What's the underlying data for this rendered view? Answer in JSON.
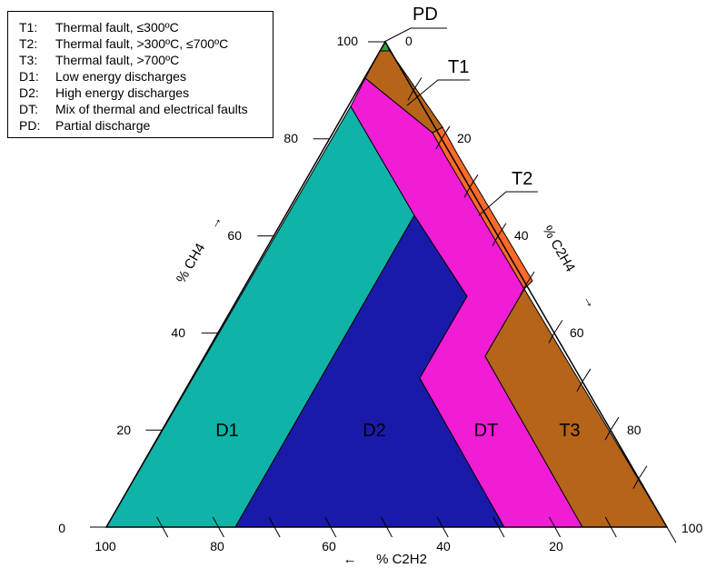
{
  "legend": {
    "entries": [
      {
        "code": "T1:",
        "desc": "Thermal fault, ≤300ºC"
      },
      {
        "code": "T2:",
        "desc": "Thermal fault, >300ºC, ≤700ºC"
      },
      {
        "code": "T3:",
        "desc": "Thermal fault, >700ºC"
      },
      {
        "code": "D1:",
        "desc": "Low energy discharges"
      },
      {
        "code": "D2:",
        "desc": "High energy discharges"
      },
      {
        "code": "DT:",
        "desc": "Mix of thermal and electrical faults"
      },
      {
        "code": "PD:",
        "desc": "Partial discharge"
      }
    ]
  },
  "zones": {
    "D1": {
      "label": "D1",
      "color": "#10b3a8"
    },
    "D2": {
      "label": "D2",
      "color": "#1a1aaa"
    },
    "DT": {
      "label": "DT",
      "color": "#f01cd6"
    },
    "T3": {
      "label": "T3",
      "color": "#b5641a"
    },
    "T2": {
      "label": "T2",
      "color": "#ff6a2a"
    },
    "T1": {
      "label": "T1",
      "color": "#b5641a"
    },
    "PD": {
      "label": "PD",
      "color": "#2e9e3e"
    }
  },
  "axes": {
    "ch4": {
      "title": "% CH4",
      "arrow": "→",
      "ticks": [
        "0",
        "20",
        "40",
        "60",
        "80",
        "100"
      ]
    },
    "c2h4": {
      "title": "% C2H4",
      "arrow": "→",
      "ticks": [
        "0",
        "20",
        "40",
        "60",
        "80",
        "100"
      ]
    },
    "c2h2": {
      "title": "% C2H2",
      "arrow": "←",
      "ticks": [
        "100",
        "80",
        "60",
        "40",
        "20"
      ]
    }
  }
}
